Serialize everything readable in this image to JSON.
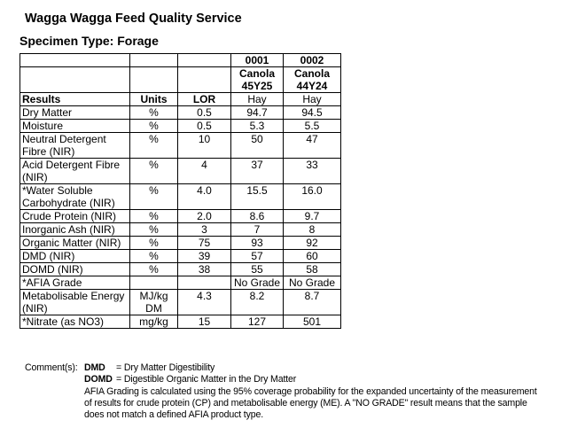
{
  "header": {
    "org": "Wagga Wagga Feed Quality Service",
    "specimen": "Specimen Type: Forage"
  },
  "table": {
    "samples": [
      {
        "id": "0001",
        "desc": "Canola 45Y25",
        "type": "Hay"
      },
      {
        "id": "0002",
        "desc": "Canola 44Y24",
        "type": "Hay"
      }
    ],
    "columns": {
      "results": "Results",
      "units": "Units",
      "lor": "LOR"
    },
    "rows": [
      {
        "name": "Dry Matter",
        "unit": "%",
        "lor": "0.5",
        "v1": "94.7",
        "v2": "94.5"
      },
      {
        "name": "Moisture",
        "unit": "%",
        "lor": "0.5",
        "v1": "5.3",
        "v2": "5.5"
      },
      {
        "name": "Neutral Detergent Fibre (NIR)",
        "unit": "%",
        "lor": "10",
        "v1": "50",
        "v2": "47"
      },
      {
        "name": "Acid Detergent Fibre (NIR)",
        "unit": "%",
        "lor": "4",
        "v1": "37",
        "v2": "33"
      },
      {
        "name": "*Water Soluble Carbohydrate (NIR)",
        "unit": "%",
        "lor": "4.0",
        "v1": "15.5",
        "v2": "16.0"
      },
      {
        "name": "Crude Protein (NIR)",
        "unit": "%",
        "lor": "2.0",
        "v1": "8.6",
        "v2": "9.7"
      },
      {
        "name": "Inorganic Ash (NIR)",
        "unit": "%",
        "lor": "3",
        "v1": "7",
        "v2": "8"
      },
      {
        "name": "Organic Matter (NIR)",
        "unit": "%",
        "lor": "75",
        "v1": "93",
        "v2": "92"
      },
      {
        "name": "DMD (NIR)",
        "unit": "%",
        "lor": "39",
        "v1": "57",
        "v2": "60"
      },
      {
        "name": "DOMD (NIR)",
        "unit": "%",
        "lor": "38",
        "v1": "55",
        "v2": "58"
      },
      {
        "name": "*AFIA Grade",
        "unit": "",
        "lor": "",
        "v1": "No Grade",
        "v2": "No Grade"
      },
      {
        "name": "Metabolisable Energy (NIR)",
        "unit": "MJ/kg DM",
        "lor": "4.3",
        "v1": "8.2",
        "v2": "8.7"
      },
      {
        "name": "*Nitrate (as NO3)",
        "unit": "mg/kg",
        "lor": "15",
        "v1": "127",
        "v2": "501"
      }
    ]
  },
  "comments": {
    "label": "Comment(s):",
    "dmd_abbr": "DMD",
    "dmd_def": "= Dry Matter Digestibility",
    "domd_abbr": "DOMD",
    "domd_def": "= Digestible Organic Matter in the Dry Matter",
    "afia_lines": [
      "AFIA Grading is calculated using the 95% coverage probability for the expanded uncertainty of the measurement",
      "of results for crude protein (CP) and metabolisable energy (ME). A \"NO GRADE\" result means that the sample",
      "does not match a defined AFIA product type."
    ]
  }
}
